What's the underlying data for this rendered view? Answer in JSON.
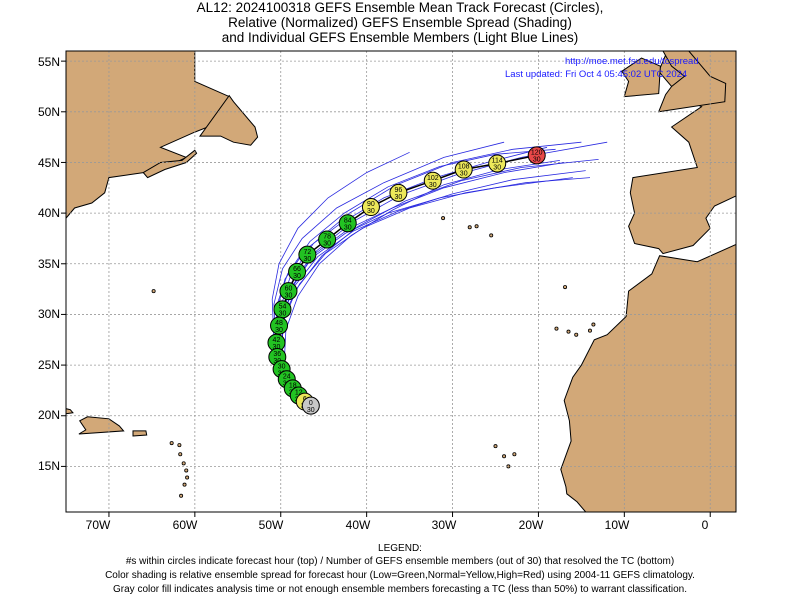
{
  "title": {
    "line1": "AL12: 2024100318 GEFS Ensemble Mean Track Forecast (Circles),",
    "line2": "Relative (Normalized) GEFS Ensemble Spread (Shading)",
    "line3": "and Individual GEFS Ensemble Members (Light Blue Lines)"
  },
  "credit": {
    "url": "http://moe.met.fsu.edu/tcspread",
    "updated": "Last updated: Fri Oct  4 05:45:02 UTC 2024"
  },
  "axes": {
    "lat_labels": [
      "55N",
      "50N",
      "45N",
      "40N",
      "35N",
      "30N",
      "25N",
      "20N",
      "15N"
    ],
    "lon_labels": [
      "70W",
      "60W",
      "50W",
      "40W",
      "30W",
      "20W",
      "10W",
      "0"
    ]
  },
  "legend": {
    "heading": "LEGEND:",
    "line1": "#s within circles indicate forecast hour (top) / Number of GEFS ensemble members (out of 30) that resolved the TC (bottom)",
    "line2": "Color shading is relative ensemble spread for forecast hour (Low=Green,Normal=Yellow,High=Red) using 2004-11 GEFS climatology.",
    "line3": "Gray color fill indicates analysis time or not enough ensemble members forecasting a TC (less than 50%) to warrant classification."
  },
  "colors": {
    "land": "#d2a878",
    "ocean": "#ffffff",
    "member_lines": "#2a2ae0",
    "mean_track": "#000000",
    "spread_low": "#22c322",
    "spread_normal": "#ece85a",
    "spread_high": "#e84848",
    "analysis": "#c8c8c8"
  },
  "map_data": {
    "lon_range": [
      -75,
      3
    ],
    "lat_range": [
      10.5,
      56
    ],
    "mean_track": [
      {
        "lon": -46.5,
        "lat": 21.0,
        "hour": "0",
        "members": "30",
        "spread": "analysis"
      },
      {
        "lon": -47.2,
        "lat": 21.4,
        "hour": "6",
        "members": "30",
        "spread": "normal"
      },
      {
        "lon": -47.9,
        "lat": 22.0,
        "hour": "12",
        "members": "30",
        "spread": "low"
      },
      {
        "lon": -48.6,
        "lat": 22.7,
        "hour": "18",
        "members": "30",
        "spread": "low"
      },
      {
        "lon": -49.3,
        "lat": 23.6,
        "hour": "24",
        "members": "30",
        "spread": "low"
      },
      {
        "lon": -49.9,
        "lat": 24.6,
        "hour": "30",
        "members": "30",
        "spread": "low"
      },
      {
        "lon": -50.4,
        "lat": 25.8,
        "hour": "36",
        "members": "30",
        "spread": "low"
      },
      {
        "lon": -50.5,
        "lat": 27.2,
        "hour": "42",
        "members": "30",
        "spread": "low"
      },
      {
        "lon": -50.2,
        "lat": 28.9,
        "hour": "48",
        "members": "30",
        "spread": "low"
      },
      {
        "lon": -49.8,
        "lat": 30.5,
        "hour": "54",
        "members": "30",
        "spread": "low"
      },
      {
        "lon": -49.1,
        "lat": 32.3,
        "hour": "60",
        "members": "30",
        "spread": "low"
      },
      {
        "lon": -48.1,
        "lat": 34.2,
        "hour": "66",
        "members": "30",
        "spread": "low"
      },
      {
        "lon": -46.9,
        "lat": 35.9,
        "hour": "72",
        "members": "30",
        "spread": "low"
      },
      {
        "lon": -44.6,
        "lat": 37.4,
        "hour": "78",
        "members": "30",
        "spread": "low"
      },
      {
        "lon": -42.2,
        "lat": 39.0,
        "hour": "84",
        "members": "30",
        "spread": "low"
      },
      {
        "lon": -39.5,
        "lat": 40.6,
        "hour": "90",
        "members": "30",
        "spread": "normal"
      },
      {
        "lon": -36.3,
        "lat": 42.0,
        "hour": "96",
        "members": "30",
        "spread": "normal"
      },
      {
        "lon": -32.3,
        "lat": 43.2,
        "hour": "102",
        "members": "30",
        "spread": "normal"
      },
      {
        "lon": -28.7,
        "lat": 44.3,
        "hour": "108",
        "members": "30",
        "spread": "normal"
      },
      {
        "lon": -24.8,
        "lat": 44.9,
        "hour": "114",
        "members": "30",
        "spread": "normal"
      },
      {
        "lon": -20.2,
        "lat": 45.7,
        "hour": "120",
        "members": "30",
        "spread": "high"
      }
    ],
    "ensemble_members": [
      [
        [
          -46.5,
          21
        ],
        [
          -48.5,
          23
        ],
        [
          -50.2,
          26
        ],
        [
          -50.0,
          30
        ],
        [
          -48.5,
          33
        ],
        [
          -46,
          36
        ],
        [
          -42,
          38.5
        ],
        [
          -37,
          40.5
        ],
        [
          -31,
          42.5
        ],
        [
          -24,
          44
        ],
        [
          -17,
          45
        ]
      ],
      [
        [
          -46.5,
          21
        ],
        [
          -48.7,
          23.2
        ],
        [
          -50.3,
          26.5
        ],
        [
          -50.4,
          30.5
        ],
        [
          -49.5,
          33.5
        ],
        [
          -47,
          36.5
        ],
        [
          -43,
          39
        ],
        [
          -38,
          41.5
        ],
        [
          -32,
          43.5
        ],
        [
          -26,
          45
        ],
        [
          -19,
          46.5
        ]
      ],
      [
        [
          -46.5,
          21
        ],
        [
          -48.3,
          22.8
        ],
        [
          -49.8,
          25.5
        ],
        [
          -49.8,
          29
        ],
        [
          -48.8,
          32.5
        ],
        [
          -46.5,
          35.5
        ],
        [
          -42.5,
          38
        ],
        [
          -37.5,
          40
        ],
        [
          -31.5,
          41.5
        ],
        [
          -25,
          42.5
        ],
        [
          -16,
          43.5
        ]
      ],
      [
        [
          -46.5,
          21
        ],
        [
          -48.8,
          23.4
        ],
        [
          -50.6,
          27
        ],
        [
          -50.8,
          31
        ],
        [
          -49.8,
          34.5
        ],
        [
          -47.5,
          37.5
        ],
        [
          -43.5,
          40.5
        ],
        [
          -38,
          43
        ],
        [
          -31,
          45.5
        ],
        [
          -24,
          47
        ]
      ],
      [
        [
          -46.5,
          21
        ],
        [
          -48.4,
          23
        ],
        [
          -50.0,
          26
        ],
        [
          -49.6,
          30
        ],
        [
          -47.8,
          33
        ],
        [
          -44.8,
          36
        ],
        [
          -40.5,
          38.5
        ],
        [
          -35,
          40.5
        ],
        [
          -28.5,
          42
        ],
        [
          -21.5,
          43
        ],
        [
          -14,
          43.5
        ]
      ],
      [
        [
          -46.5,
          21
        ],
        [
          -48.6,
          23.1
        ],
        [
          -50.3,
          26.2
        ],
        [
          -50.1,
          29.8
        ],
        [
          -48.7,
          33.2
        ],
        [
          -45.8,
          36.3
        ],
        [
          -41.5,
          39.2
        ],
        [
          -36,
          41.8
        ],
        [
          -29.5,
          43.8
        ],
        [
          -22,
          45.5
        ],
        [
          -12,
          47
        ]
      ],
      [
        [
          -46.5,
          21
        ],
        [
          -48.9,
          23.5
        ],
        [
          -50.8,
          27.5
        ],
        [
          -51,
          31.5
        ],
        [
          -50.2,
          35
        ],
        [
          -48,
          38.5
        ],
        [
          -44.5,
          41.5
        ],
        [
          -40,
          44
        ],
        [
          -35,
          46
        ]
      ],
      [
        [
          -46.5,
          21
        ],
        [
          -48.2,
          22.7
        ],
        [
          -49.6,
          25.2
        ],
        [
          -49.4,
          28.5
        ],
        [
          -48,
          31.8
        ],
        [
          -45.5,
          35
        ],
        [
          -41.8,
          37.8
        ],
        [
          -37,
          40.3
        ],
        [
          -31,
          42.8
        ],
        [
          -24.5,
          44.3
        ],
        [
          -17.5,
          45.2
        ]
      ],
      [
        [
          -46.5,
          21
        ],
        [
          -48.7,
          23.3
        ],
        [
          -50.4,
          26.8
        ],
        [
          -50.5,
          30.8
        ],
        [
          -49.2,
          34
        ],
        [
          -46.6,
          37.2
        ],
        [
          -42.6,
          40
        ],
        [
          -37.5,
          42.6
        ],
        [
          -31.5,
          44.6
        ],
        [
          -25,
          45.8
        ],
        [
          -18,
          46.3
        ]
      ],
      [
        [
          -46.5,
          21
        ],
        [
          -48.5,
          23
        ],
        [
          -50.1,
          26.1
        ],
        [
          -49.9,
          29.6
        ],
        [
          -48.4,
          32.8
        ],
        [
          -45.7,
          35.7
        ],
        [
          -41.6,
          38.2
        ],
        [
          -36.3,
          40.2
        ],
        [
          -30,
          41.9
        ],
        [
          -23,
          43.3
        ],
        [
          -14.5,
          44.2
        ]
      ],
      [
        [
          -46.5,
          21
        ],
        [
          -48.6,
          23.2
        ],
        [
          -50.3,
          26.4
        ],
        [
          -50.2,
          30.2
        ],
        [
          -48.9,
          33.7
        ],
        [
          -46.2,
          37
        ],
        [
          -42,
          40
        ],
        [
          -36.5,
          42.8
        ],
        [
          -30,
          45
        ],
        [
          -23,
          46.3
        ],
        [
          -15,
          47
        ]
      ],
      [
        [
          -46.5,
          21
        ],
        [
          -48.4,
          22.9
        ],
        [
          -49.9,
          25.8
        ],
        [
          -49.7,
          29.3
        ],
        [
          -48.1,
          32.6
        ],
        [
          -45.2,
          35.8
        ],
        [
          -41,
          38.7
        ],
        [
          -35.5,
          41.2
        ],
        [
          -29,
          43.2
        ],
        [
          -22,
          44.5
        ],
        [
          -13,
          45.3
        ]
      ]
    ]
  }
}
